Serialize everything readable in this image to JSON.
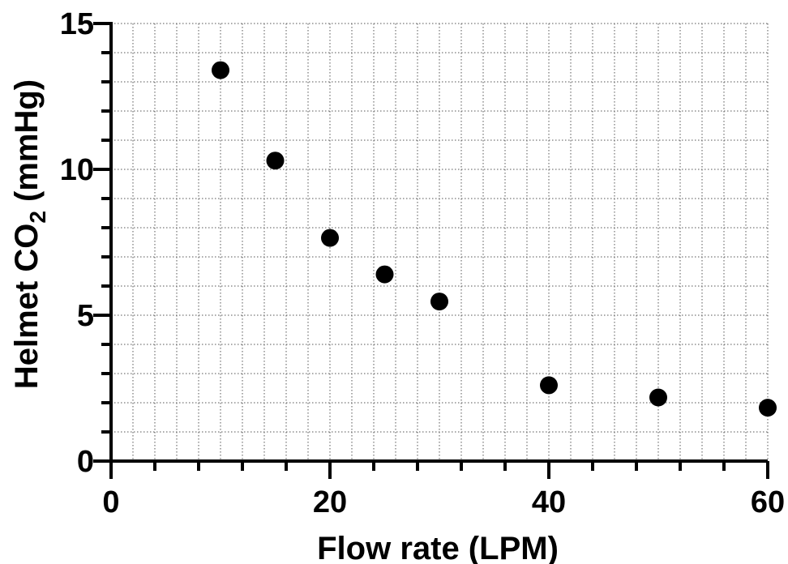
{
  "chart_data": {
    "type": "scatter",
    "title": "",
    "xlabel": "Flow rate (LPM)",
    "ylabel_parts": {
      "main": "Helmet CO",
      "sub": "2",
      "unit": " (mmHg)"
    },
    "xlim": [
      0,
      60
    ],
    "ylim": [
      0,
      15
    ],
    "x_ticks": [
      "0",
      "20",
      "40",
      "60"
    ],
    "y_ticks": [
      "0",
      "5",
      "10",
      "15"
    ],
    "grid": true,
    "legend": "none",
    "marker_color": "#000000",
    "series": [
      {
        "points": [
          {
            "x": 10,
            "y": 13.4
          },
          {
            "x": 15,
            "y": 10.3
          },
          {
            "x": 20,
            "y": 7.65
          },
          {
            "x": 25,
            "y": 6.4
          },
          {
            "x": 30,
            "y": 5.47
          },
          {
            "x": 40,
            "y": 2.6
          },
          {
            "x": 50,
            "y": 2.18
          },
          {
            "x": 60,
            "y": 1.83
          }
        ]
      }
    ]
  }
}
